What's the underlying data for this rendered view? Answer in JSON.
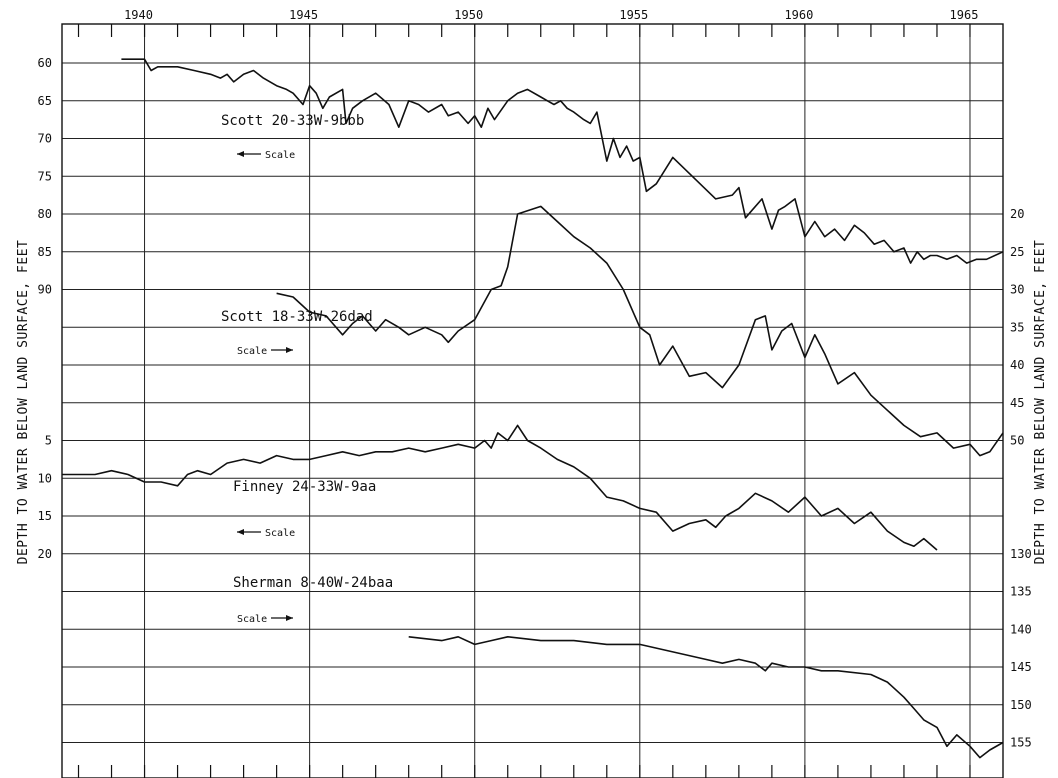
{
  "chart_data": {
    "type": "line",
    "ylabel_left": "DEPTH TO WATER BELOW LAND SURFACE, FEET",
    "ylabel_right": "DEPTH TO WATER BELOW LAND SURFACE, FEET",
    "xlim": [
      1937.5,
      1966
    ],
    "x_ticks": [
      1940,
      1945,
      1950,
      1955,
      1960,
      1965
    ],
    "grid": true,
    "left_tick_labels": [
      {
        "label": "60",
        "level": 60
      },
      {
        "label": "65",
        "level": 65
      },
      {
        "label": "70",
        "level": 70
      },
      {
        "label": "75",
        "level": 75
      },
      {
        "label": "80",
        "level": 80
      },
      {
        "label": "85",
        "level": 85
      },
      {
        "label": "90",
        "level": 90
      },
      {
        "label": "5",
        "level": 110
      },
      {
        "label": "10",
        "level": 115
      },
      {
        "label": "15",
        "level": 120
      },
      {
        "label": "20",
        "level": 125
      }
    ],
    "right_tick_labels": [
      {
        "label": "20",
        "level": 80
      },
      {
        "label": "25",
        "level": 85
      },
      {
        "label": "30",
        "level": 90
      },
      {
        "label": "35",
        "level": 95
      },
      {
        "label": "40",
        "level": 100
      },
      {
        "label": "45",
        "level": 105
      },
      {
        "label": "50",
        "level": 110
      },
      {
        "label": "130",
        "level": 125
      },
      {
        "label": "135",
        "level": 130
      },
      {
        "label": "140",
        "level": 135
      },
      {
        "label": "145",
        "level": 140
      },
      {
        "label": "150",
        "level": 145
      },
      {
        "label": "155",
        "level": 150
      }
    ],
    "series": [
      {
        "name": "Scott 20-33W-9bbb",
        "scale_label": "Scale",
        "scale_side": "left",
        "x": [
          1939.3,
          1940.0,
          1940.2,
          1940.4,
          1941.0,
          1941.5,
          1942.0,
          1942.3,
          1942.5,
          1942.7,
          1943.0,
          1943.3,
          1943.6,
          1944.0,
          1944.3,
          1944.5,
          1944.8,
          1945.0,
          1945.2,
          1945.4,
          1945.6,
          1946.0,
          1946.1,
          1946.3,
          1946.6,
          1947.0,
          1947.4,
          1947.7,
          1948.0,
          1948.3,
          1948.6,
          1949.0,
          1949.2,
          1949.5,
          1949.8,
          1950.0,
          1950.2,
          1950.4,
          1950.6,
          1951.0,
          1951.3,
          1951.6,
          1952.0,
          1952.2,
          1952.4,
          1952.6,
          1952.8,
          1953.0,
          1953.3,
          1953.5,
          1953.7,
          1954.0,
          1954.2,
          1954.4,
          1954.6,
          1954.8,
          1955.0,
          1955.2,
          1955.5,
          1956.0,
          1957.3,
          1957.8,
          1958.0,
          1958.2,
          1958.4,
          1958.7,
          1959.0,
          1959.2,
          1959.4,
          1959.7,
          1960.0,
          1960.3,
          1960.6,
          1960.9,
          1961.2,
          1961.5,
          1961.8,
          1962.1,
          1962.4,
          1962.7,
          1963.0,
          1963.2,
          1963.4,
          1963.6,
          1963.8,
          1964.0,
          1964.3,
          1964.6,
          1964.9,
          1965.2,
          1965.5,
          1966.0
        ],
        "y": [
          59.5,
          59.5,
          61.0,
          60.5,
          60.5,
          61.0,
          61.5,
          62.0,
          61.5,
          62.5,
          61.5,
          61.0,
          62.0,
          63.0,
          63.5,
          64.0,
          65.5,
          63.0,
          64.0,
          66.0,
          64.5,
          63.5,
          68.0,
          66.0,
          65.0,
          64.0,
          65.5,
          68.5,
          65.0,
          65.5,
          66.5,
          65.5,
          67.0,
          66.5,
          68.0,
          67.0,
          68.5,
          66.0,
          67.5,
          65.0,
          64.0,
          63.5,
          64.5,
          65.0,
          65.5,
          65.0,
          66.0,
          66.5,
          67.5,
          68.0,
          66.5,
          73.0,
          70.0,
          72.5,
          71.0,
          73.0,
          72.5,
          77.0,
          76.0,
          72.5,
          78.0,
          77.5,
          76.5,
          80.5,
          79.5,
          78.0,
          82.0,
          79.5,
          79.0,
          78.0,
          83.0,
          81.0,
          83.0,
          82.0,
          83.5,
          81.5,
          82.5,
          84.0,
          83.5,
          85.0,
          84.5,
          86.5,
          85.0,
          86.0,
          85.5,
          85.5,
          86.0,
          85.5,
          86.5,
          86.0,
          86.0,
          85.0
        ]
      },
      {
        "name": "Scott 18-33W-26dad",
        "scale_label": "Scale",
        "scale_side": "right",
        "x": [
          1944.0,
          1944.5,
          1945.0,
          1945.5,
          1946.0,
          1946.3,
          1946.6,
          1947.0,
          1947.3,
          1947.7,
          1948.0,
          1948.5,
          1949.0,
          1949.2,
          1949.5,
          1950.0,
          1950.5,
          1950.8,
          1951.0,
          1951.3,
          1952.0,
          1952.5,
          1953.0,
          1953.5,
          1954.0,
          1954.5,
          1955.0,
          1955.3,
          1955.6,
          1956.0,
          1956.5,
          1957.0,
          1957.5,
          1958.0,
          1958.5,
          1958.8,
          1959.0,
          1959.3,
          1959.6,
          1960.0,
          1960.3,
          1960.6,
          1961.0,
          1961.5,
          1962.0,
          1962.5,
          1963.0,
          1963.5,
          1964.0,
          1964.5,
          1965.0,
          1965.3,
          1965.6,
          1966.0
        ],
        "y": [
          30.5,
          31.0,
          33.0,
          33.5,
          36.0,
          34.5,
          33.5,
          35.5,
          34.0,
          35.0,
          36.0,
          35.0,
          36.0,
          37.0,
          35.5,
          34.0,
          30.0,
          29.5,
          27.0,
          20.0,
          19.0,
          21.0,
          23.0,
          24.5,
          26.5,
          30.0,
          35.0,
          36.0,
          40.0,
          37.5,
          41.5,
          41.0,
          43.0,
          40.0,
          34.0,
          33.5,
          38.0,
          35.5,
          34.5,
          39.0,
          36.0,
          38.5,
          42.5,
          41.0,
          44.0,
          46.0,
          48.0,
          49.5,
          49.0,
          51.0,
          50.5,
          52.0,
          51.5,
          49.0
        ]
      },
      {
        "name": "Finney 24-33W-9aa",
        "scale_label": "Scale",
        "scale_side": "left",
        "x": [
          1937.5,
          1938.5,
          1939.0,
          1939.5,
          1940.0,
          1940.5,
          1941.0,
          1941.3,
          1941.6,
          1942.0,
          1942.5,
          1943.0,
          1943.5,
          1944.0,
          1944.5,
          1945.0,
          1945.5,
          1946.0,
          1946.5,
          1947.0,
          1947.5,
          1948.0,
          1948.5,
          1949.0,
          1949.5,
          1950.0,
          1950.3,
          1950.5,
          1950.7,
          1951.0,
          1951.3,
          1951.6,
          1952.0,
          1952.5,
          1953.0,
          1953.5,
          1954.0,
          1954.5,
          1955.0,
          1955.5,
          1956.0,
          1956.5,
          1957.0,
          1957.3,
          1957.6,
          1958.0,
          1958.5,
          1959.0,
          1959.5,
          1960.0,
          1960.5,
          1961.0,
          1961.5,
          1962.0,
          1962.5,
          1963.0,
          1963.3,
          1963.6,
          1964.0
        ],
        "y": [
          9.5,
          9.5,
          9.0,
          9.5,
          10.5,
          10.5,
          11.0,
          9.5,
          9.0,
          9.5,
          8.0,
          7.5,
          8.0,
          7.0,
          7.5,
          7.5,
          7.0,
          6.5,
          7.0,
          6.5,
          6.5,
          6.0,
          6.5,
          6.0,
          5.5,
          6.0,
          5.0,
          6.0,
          4.0,
          5.0,
          3.0,
          5.0,
          6.0,
          7.5,
          8.5,
          10.0,
          12.5,
          13.0,
          14.0,
          14.5,
          17.0,
          16.0,
          15.5,
          16.5,
          15.0,
          14.0,
          12.0,
          13.0,
          14.5,
          12.5,
          15.0,
          14.0,
          16.0,
          14.5,
          17.0,
          18.5,
          19.0,
          18.0,
          19.5
        ]
      },
      {
        "name": "Sherman 8-40W-24baa",
        "scale_label": "Scale",
        "scale_side": "right",
        "x": [
          1948.0,
          1949.0,
          1949.5,
          1950.0,
          1950.5,
          1951.0,
          1952.0,
          1953.0,
          1954.0,
          1955.0,
          1956.0,
          1957.0,
          1957.5,
          1958.0,
          1958.5,
          1958.8,
          1959.0,
          1959.5,
          1960.0,
          1960.5,
          1961.0,
          1962.0,
          1962.5,
          1963.0,
          1963.3,
          1963.6,
          1964.0,
          1964.3,
          1964.6,
          1965.0,
          1965.3,
          1965.6,
          1966.0
        ],
        "y": [
          136.0,
          136.5,
          136.0,
          137.0,
          136.5,
          136.0,
          136.5,
          136.5,
          137.0,
          137.0,
          138.0,
          139.0,
          139.5,
          139.0,
          139.5,
          140.5,
          139.5,
          140.0,
          140.0,
          140.5,
          140.5,
          141.0,
          142.0,
          144.0,
          145.5,
          147.0,
          148.0,
          150.5,
          149.0,
          150.5,
          152.0,
          151.0,
          150.0
        ]
      }
    ]
  }
}
